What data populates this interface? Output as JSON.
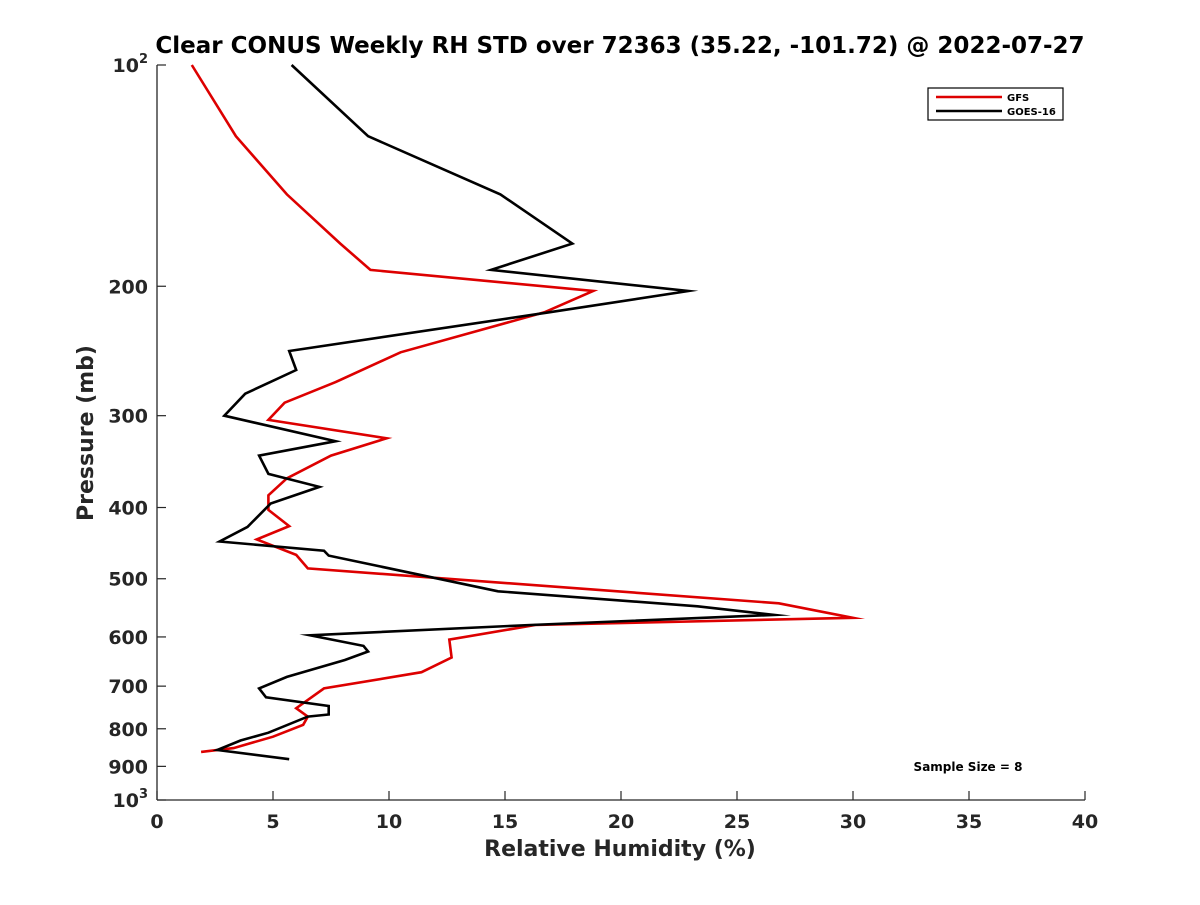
{
  "chart_data": {
    "type": "line",
    "title": "Clear CONUS Weekly RH STD over 72363 (35.22, -101.72) @ 2022-07-27",
    "xlabel": "Relative Humidity (%)",
    "ylabel": "Pressure (mb)",
    "xlim": [
      0,
      40
    ],
    "ylim": [
      100,
      1000
    ],
    "yscale": "log",
    "y_reversed": true,
    "grid": false,
    "x_ticks": [
      0,
      5,
      10,
      15,
      20,
      25,
      30,
      35,
      40
    ],
    "x_tick_labels": [
      "0",
      "5",
      "10",
      "15",
      "20",
      "25",
      "30",
      "35",
      "40"
    ],
    "y_ticks": [
      100,
      200,
      300,
      400,
      500,
      600,
      700,
      800,
      900,
      1000
    ],
    "y_tick_labels": [
      {
        "base": "10",
        "sup": "2"
      },
      {
        "base": "200",
        "sup": ""
      },
      {
        "base": "300",
        "sup": ""
      },
      {
        "base": "400",
        "sup": ""
      },
      {
        "base": "500",
        "sup": ""
      },
      {
        "base": "600",
        "sup": ""
      },
      {
        "base": "700",
        "sup": ""
      },
      {
        "base": "800",
        "sup": ""
      },
      {
        "base": "900",
        "sup": ""
      },
      {
        "base": "10",
        "sup": "3"
      }
    ],
    "legend_placement": "top-right",
    "series": [
      {
        "name": "GFS",
        "color": "#dd0000",
        "rh": [
          1.5,
          3.4,
          5.6,
          7.9,
          9.2,
          18.8,
          16.7,
          10.5,
          7.7,
          5.5,
          4.8,
          9.9,
          7.5,
          5.6,
          4.8,
          4.8,
          5.7,
          4.3,
          6.0,
          6.5,
          26.8,
          30.0,
          16.3,
          12.6,
          12.7,
          11.4,
          7.2,
          6.0,
          6.5,
          6.3,
          5.0,
          3.3,
          1.9
        ],
        "pressure": [
          100,
          125,
          150,
          175,
          190,
          203,
          217,
          246,
          270,
          288,
          304,
          322,
          340,
          365,
          385,
          403,
          424,
          442,
          464,
          484,
          540,
          565,
          578,
          605,
          640,
          670,
          705,
          750,
          770,
          790,
          820,
          850,
          860
        ]
      },
      {
        "name": "GOES-16",
        "color": "#000000",
        "rh": [
          5.8,
          9.1,
          14.8,
          17.9,
          14.4,
          22.9,
          16.9,
          5.7,
          6.0,
          3.8,
          2.9,
          7.7,
          4.4,
          4.8,
          7.0,
          4.9,
          3.9,
          2.7,
          7.2,
          7.4,
          14.7,
          23.3,
          26.6,
          16.1,
          6.6,
          8.9,
          9.1,
          8.1,
          5.6,
          4.4,
          4.7,
          7.4,
          7.4,
          6.5,
          4.8,
          3.6,
          2.6,
          5.7
        ],
        "pressure": [
          100,
          125,
          150,
          175,
          190,
          203,
          217,
          245,
          260,
          280,
          300,
          325,
          340,
          360,
          375,
          395,
          425,
          445,
          458,
          465,
          520,
          545,
          560,
          578,
          597,
          617,
          628,
          645,
          680,
          705,
          725,
          745,
          765,
          770,
          810,
          830,
          855,
          880
        ]
      }
    ],
    "annotation": "Sample Size = 8"
  }
}
